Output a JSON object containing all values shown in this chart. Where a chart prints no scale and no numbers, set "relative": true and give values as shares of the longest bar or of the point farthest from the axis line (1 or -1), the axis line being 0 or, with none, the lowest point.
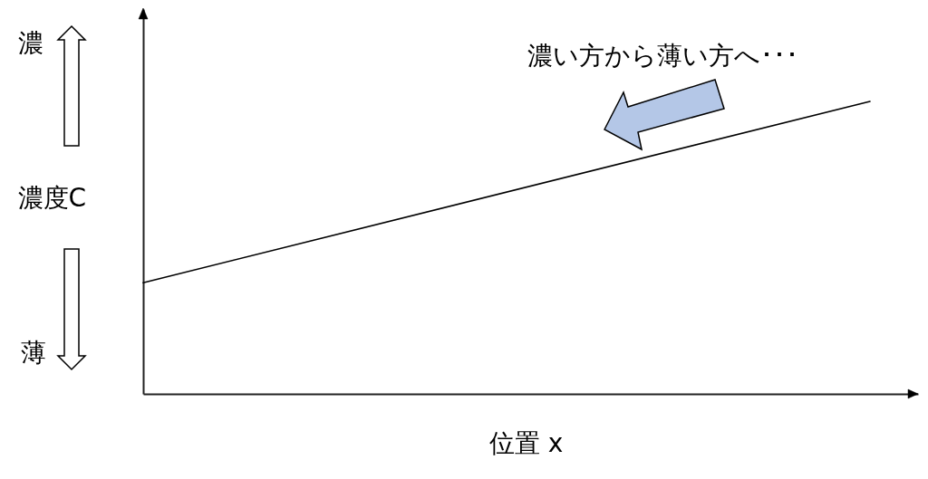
{
  "chart_data": {
    "type": "line",
    "relative": true,
    "categories": [
      null,
      null
    ],
    "xlabel": "位置 x",
    "ylabel": "濃度C",
    "annotations": [
      "濃",
      "薄",
      "濃い方から薄い方へ･･･"
    ],
    "series": [
      {
        "color": "#000000",
        "values": [
          0.38,
          1
        ]
      }
    ]
  }
}
